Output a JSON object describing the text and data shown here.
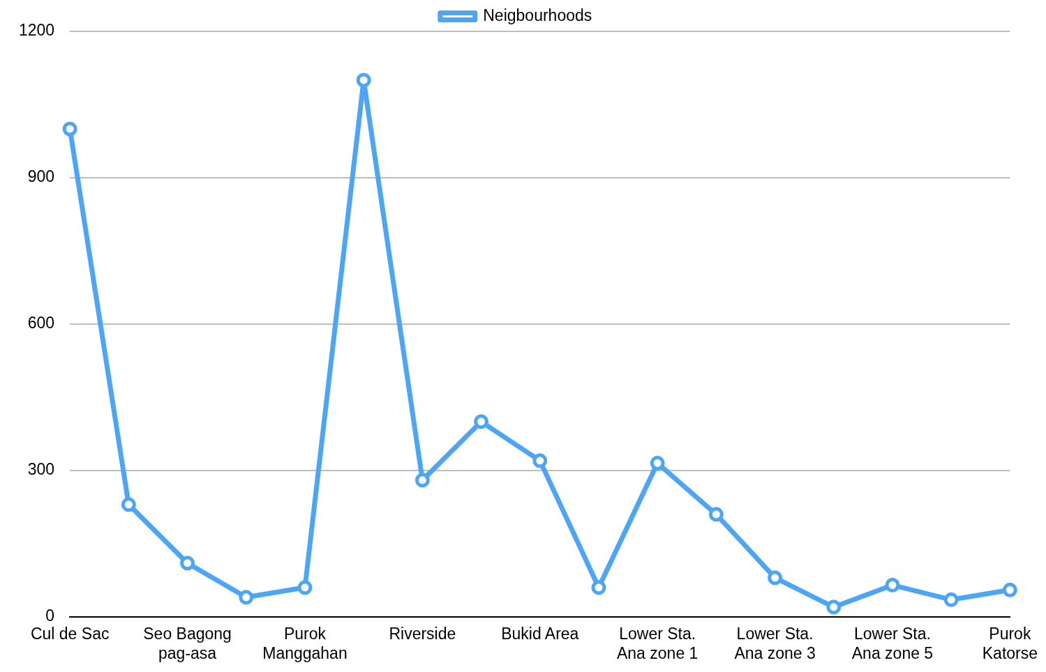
{
  "chart_data": {
    "type": "line",
    "categories": [
      "Cul de Sac",
      null,
      "Seo Bagong\npag-asa",
      null,
      "Purok\nManggahan",
      null,
      "Riverside",
      null,
      "Bukid Area",
      null,
      "Lower Sta.\nAna zone 1",
      null,
      "Lower Sta.\nAna zone 3",
      null,
      "Lower Sta.\nAna zone 5",
      null,
      "Purok\nKatorse"
    ],
    "series": [
      {
        "name": "Neigbourhoods",
        "color": "#4da6f5",
        "values": [
          1000,
          230,
          110,
          40,
          60,
          1100,
          280,
          400,
          320,
          60,
          315,
          210,
          80,
          20,
          65,
          35,
          55
        ]
      }
    ],
    "ylim": [
      0,
      1200
    ],
    "yticks": [
      0,
      300,
      600,
      900,
      1200
    ],
    "grid": "y",
    "legend": "top",
    "marker": "circle",
    "line_style": "solid"
  }
}
